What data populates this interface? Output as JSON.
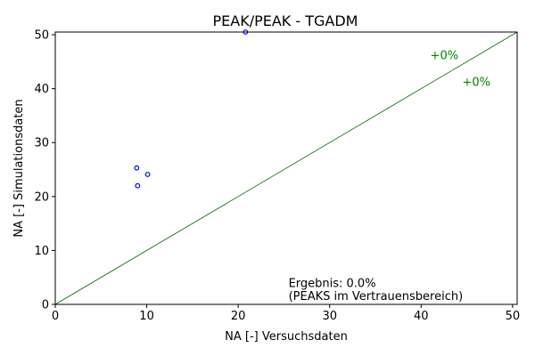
{
  "chart_data": {
    "type": "scatter",
    "title": "PEAK/PEAK - TGADM",
    "xlabel": "NA [-] Versuchsdaten",
    "ylabel": "NA [-] Simulationsdaten",
    "xlim": [
      0,
      50.5
    ],
    "ylim": [
      0,
      50.5
    ],
    "xticks": [
      0,
      10,
      20,
      30,
      40,
      50
    ],
    "yticks": [
      0,
      10,
      20,
      30,
      40,
      50
    ],
    "grid": false,
    "series": [
      {
        "marker": "open-circle",
        "color": "#0000ff",
        "points": [
          {
            "x": 8.9,
            "y": 25.3
          },
          {
            "x": 10.1,
            "y": 24.1
          },
          {
            "x": 9.0,
            "y": 22.0
          },
          {
            "x": 20.8,
            "y": 50.5
          }
        ]
      }
    ],
    "reference_lines": [
      {
        "from": [
          0,
          0
        ],
        "to": [
          50.5,
          50.5
        ],
        "color": "#006400"
      }
    ],
    "annotations": [
      {
        "text": "+0%",
        "x": 41.0,
        "y": 45.5,
        "color": "#008000"
      },
      {
        "text": "+0%",
        "x": 44.5,
        "y": 40.5,
        "color": "#008000"
      },
      {
        "text": "Ergebnis: 0.0%",
        "x": 25.5,
        "y": 3.2,
        "color": "#000000"
      },
      {
        "text": "(PEAKS im Vertrauensbereich)",
        "x": 25.5,
        "y": 0.8,
        "color": "#000000"
      }
    ]
  }
}
